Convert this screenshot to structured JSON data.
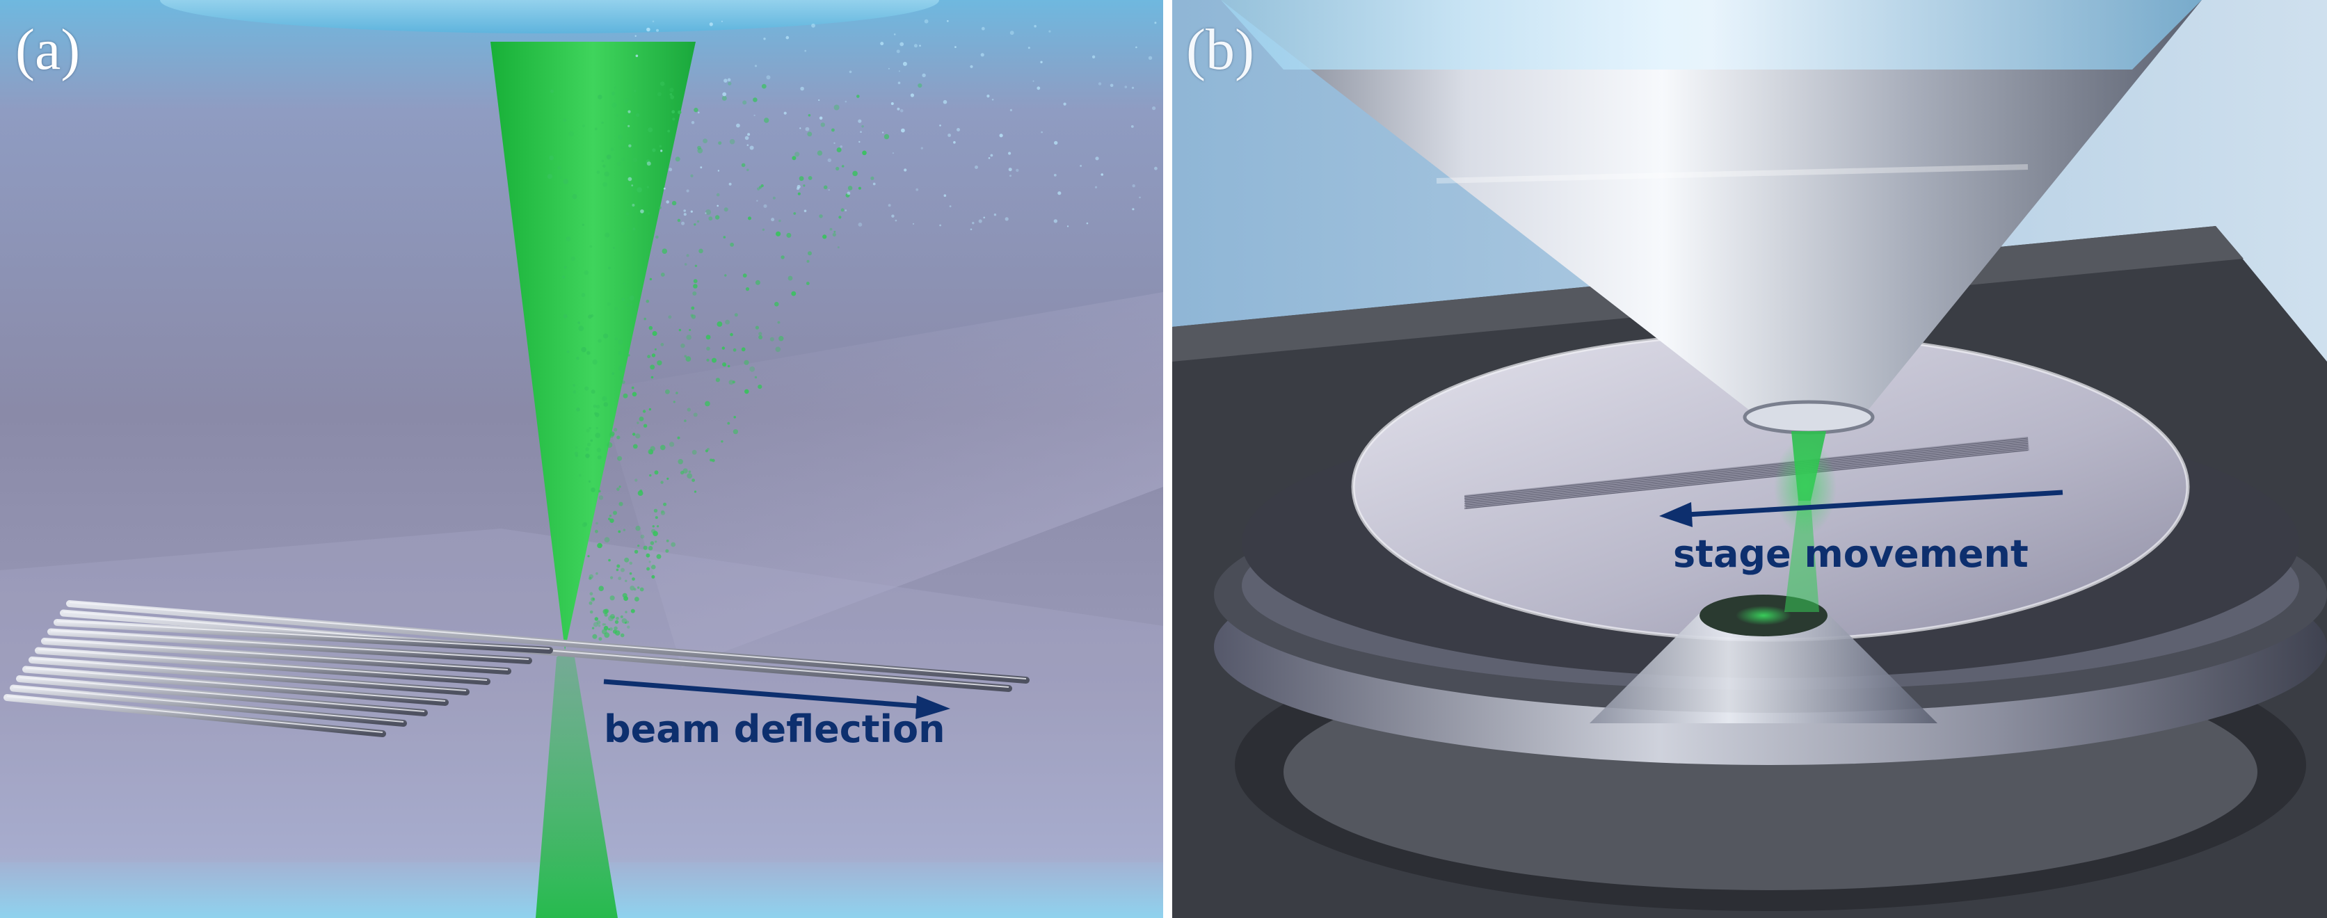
{
  "panels": [
    {
      "label": "(a)",
      "caption": "beam deflection"
    },
    {
      "label": "(b)",
      "caption": "stage movement"
    }
  ],
  "colors": {
    "laser": "#29c34a",
    "arrow": "#0d2f6e",
    "background_a": "#8d90b0",
    "chamber_b": "#3a3d44"
  }
}
